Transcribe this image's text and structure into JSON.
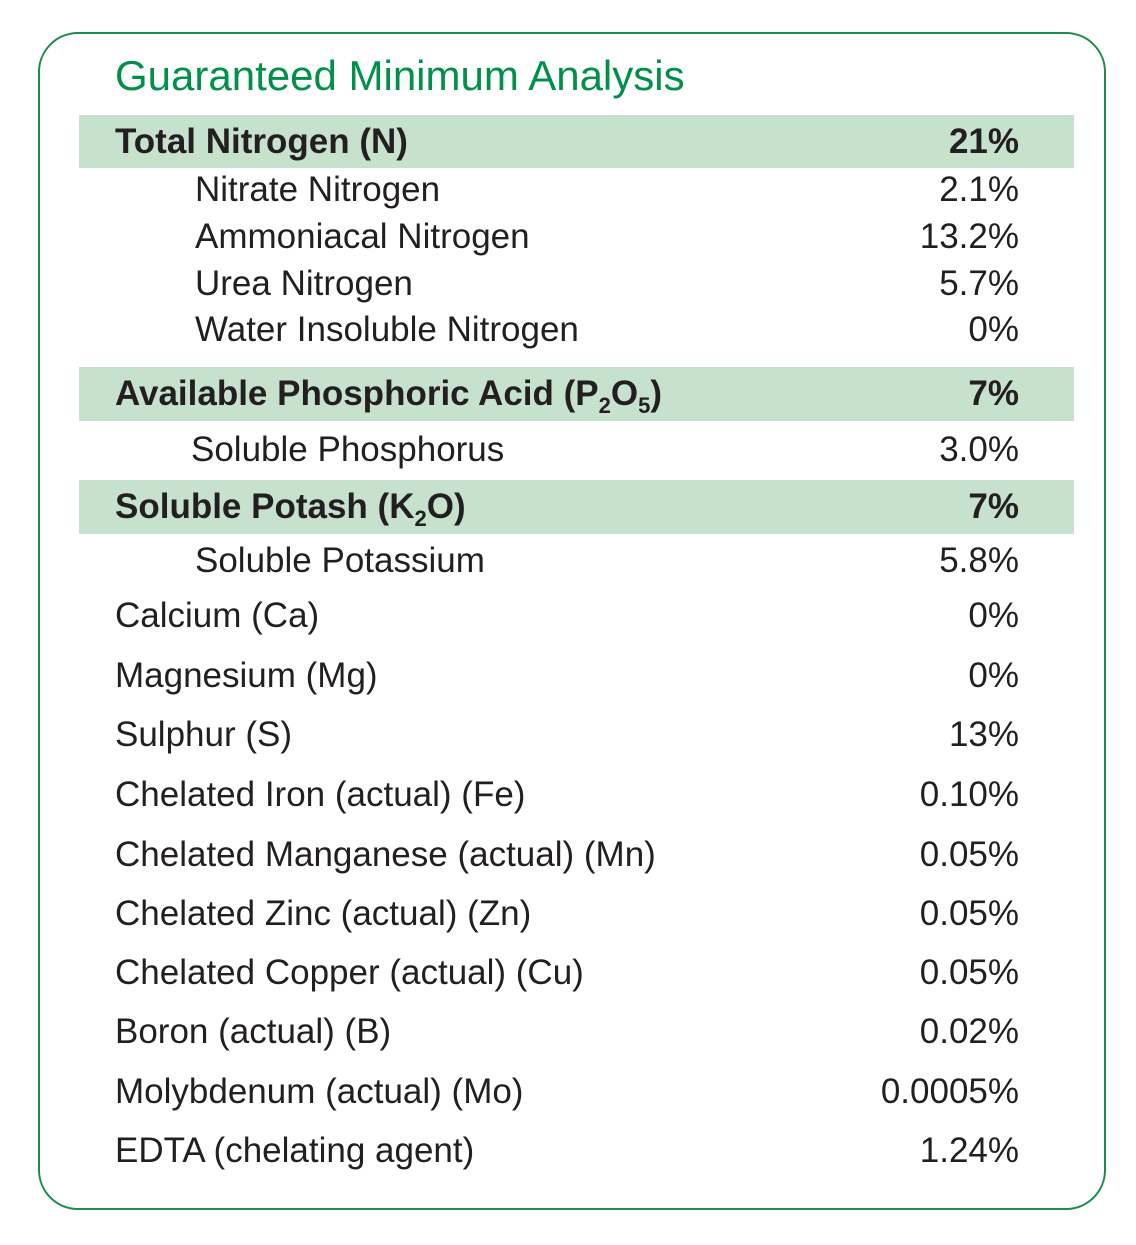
{
  "title": "Guaranteed Minimum Analysis",
  "rows": [
    {
      "label": "Total Nitrogen (N)",
      "value": "21%",
      "highlight": true
    },
    {
      "label": "Nitrate Nitrogen",
      "value": "2.1%"
    },
    {
      "label": "Ammoniacal Nitrogen",
      "value": "13.2%"
    },
    {
      "label": "Urea Nitrogen",
      "value": "5.7%"
    },
    {
      "label": "Water Insoluble Nitrogen",
      "value": "0%"
    },
    {
      "label_parts": [
        "Available Phosphoric Acid (P",
        "2",
        "O",
        "5",
        ")"
      ],
      "value": "7%",
      "highlight": true
    },
    {
      "label": "Soluble Phosphorus",
      "value": "3.0%"
    },
    {
      "label_parts": [
        "Soluble Potash (K",
        "2",
        "O)"
      ],
      "value": "7%",
      "highlight": true
    },
    {
      "label": "Soluble Potassium",
      "value": "5.8%"
    },
    {
      "label": "Calcium (Ca)",
      "value": "0%"
    },
    {
      "label": "Magnesium (Mg)",
      "value": "0%"
    },
    {
      "label": "Sulphur (S)",
      "value": "13%"
    },
    {
      "label": "Chelated Iron (actual) (Fe)",
      "value": "0.10%"
    },
    {
      "label": "Chelated Manganese (actual) (Mn)",
      "value": "0.05%"
    },
    {
      "label": "Chelated Zinc (actual) (Zn)",
      "value": "0.05%"
    },
    {
      "label": "Chelated Copper (actual) (Cu)",
      "value": "0.05%"
    },
    {
      "label": "Boron (actual) (B)",
      "value": "0.02%"
    },
    {
      "label": "Molybdenum (actual) (Mo)",
      "value": "0.0005%"
    },
    {
      "label": "EDTA (chelating agent)",
      "value": "1.24%"
    }
  ],
  "colors": {
    "title": "#00904a",
    "border": "#1f8a4c",
    "highlight": "#c6e1cc",
    "text": "#231f20"
  }
}
